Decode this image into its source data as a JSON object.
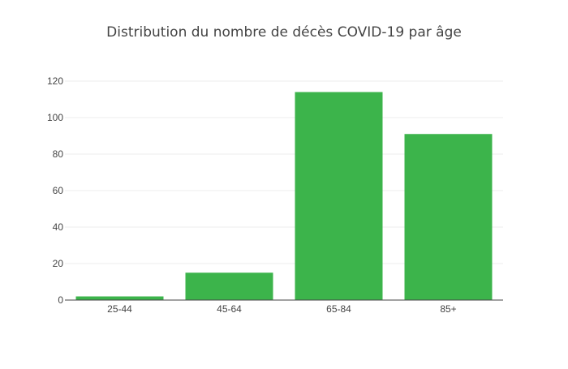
{
  "chart_data": {
    "type": "bar",
    "title": "Distribution du nombre de décès COVID-19 par âge",
    "xlabel": "",
    "ylabel": "",
    "categories": [
      "25-44",
      "45-64",
      "65-84",
      "85+"
    ],
    "values": [
      2,
      15,
      114,
      91
    ],
    "ylim": [
      0,
      120
    ],
    "yticks": [
      0,
      20,
      40,
      60,
      80,
      100,
      120
    ],
    "grid": true,
    "legend": "none",
    "bar_color": "#3cb44b"
  }
}
